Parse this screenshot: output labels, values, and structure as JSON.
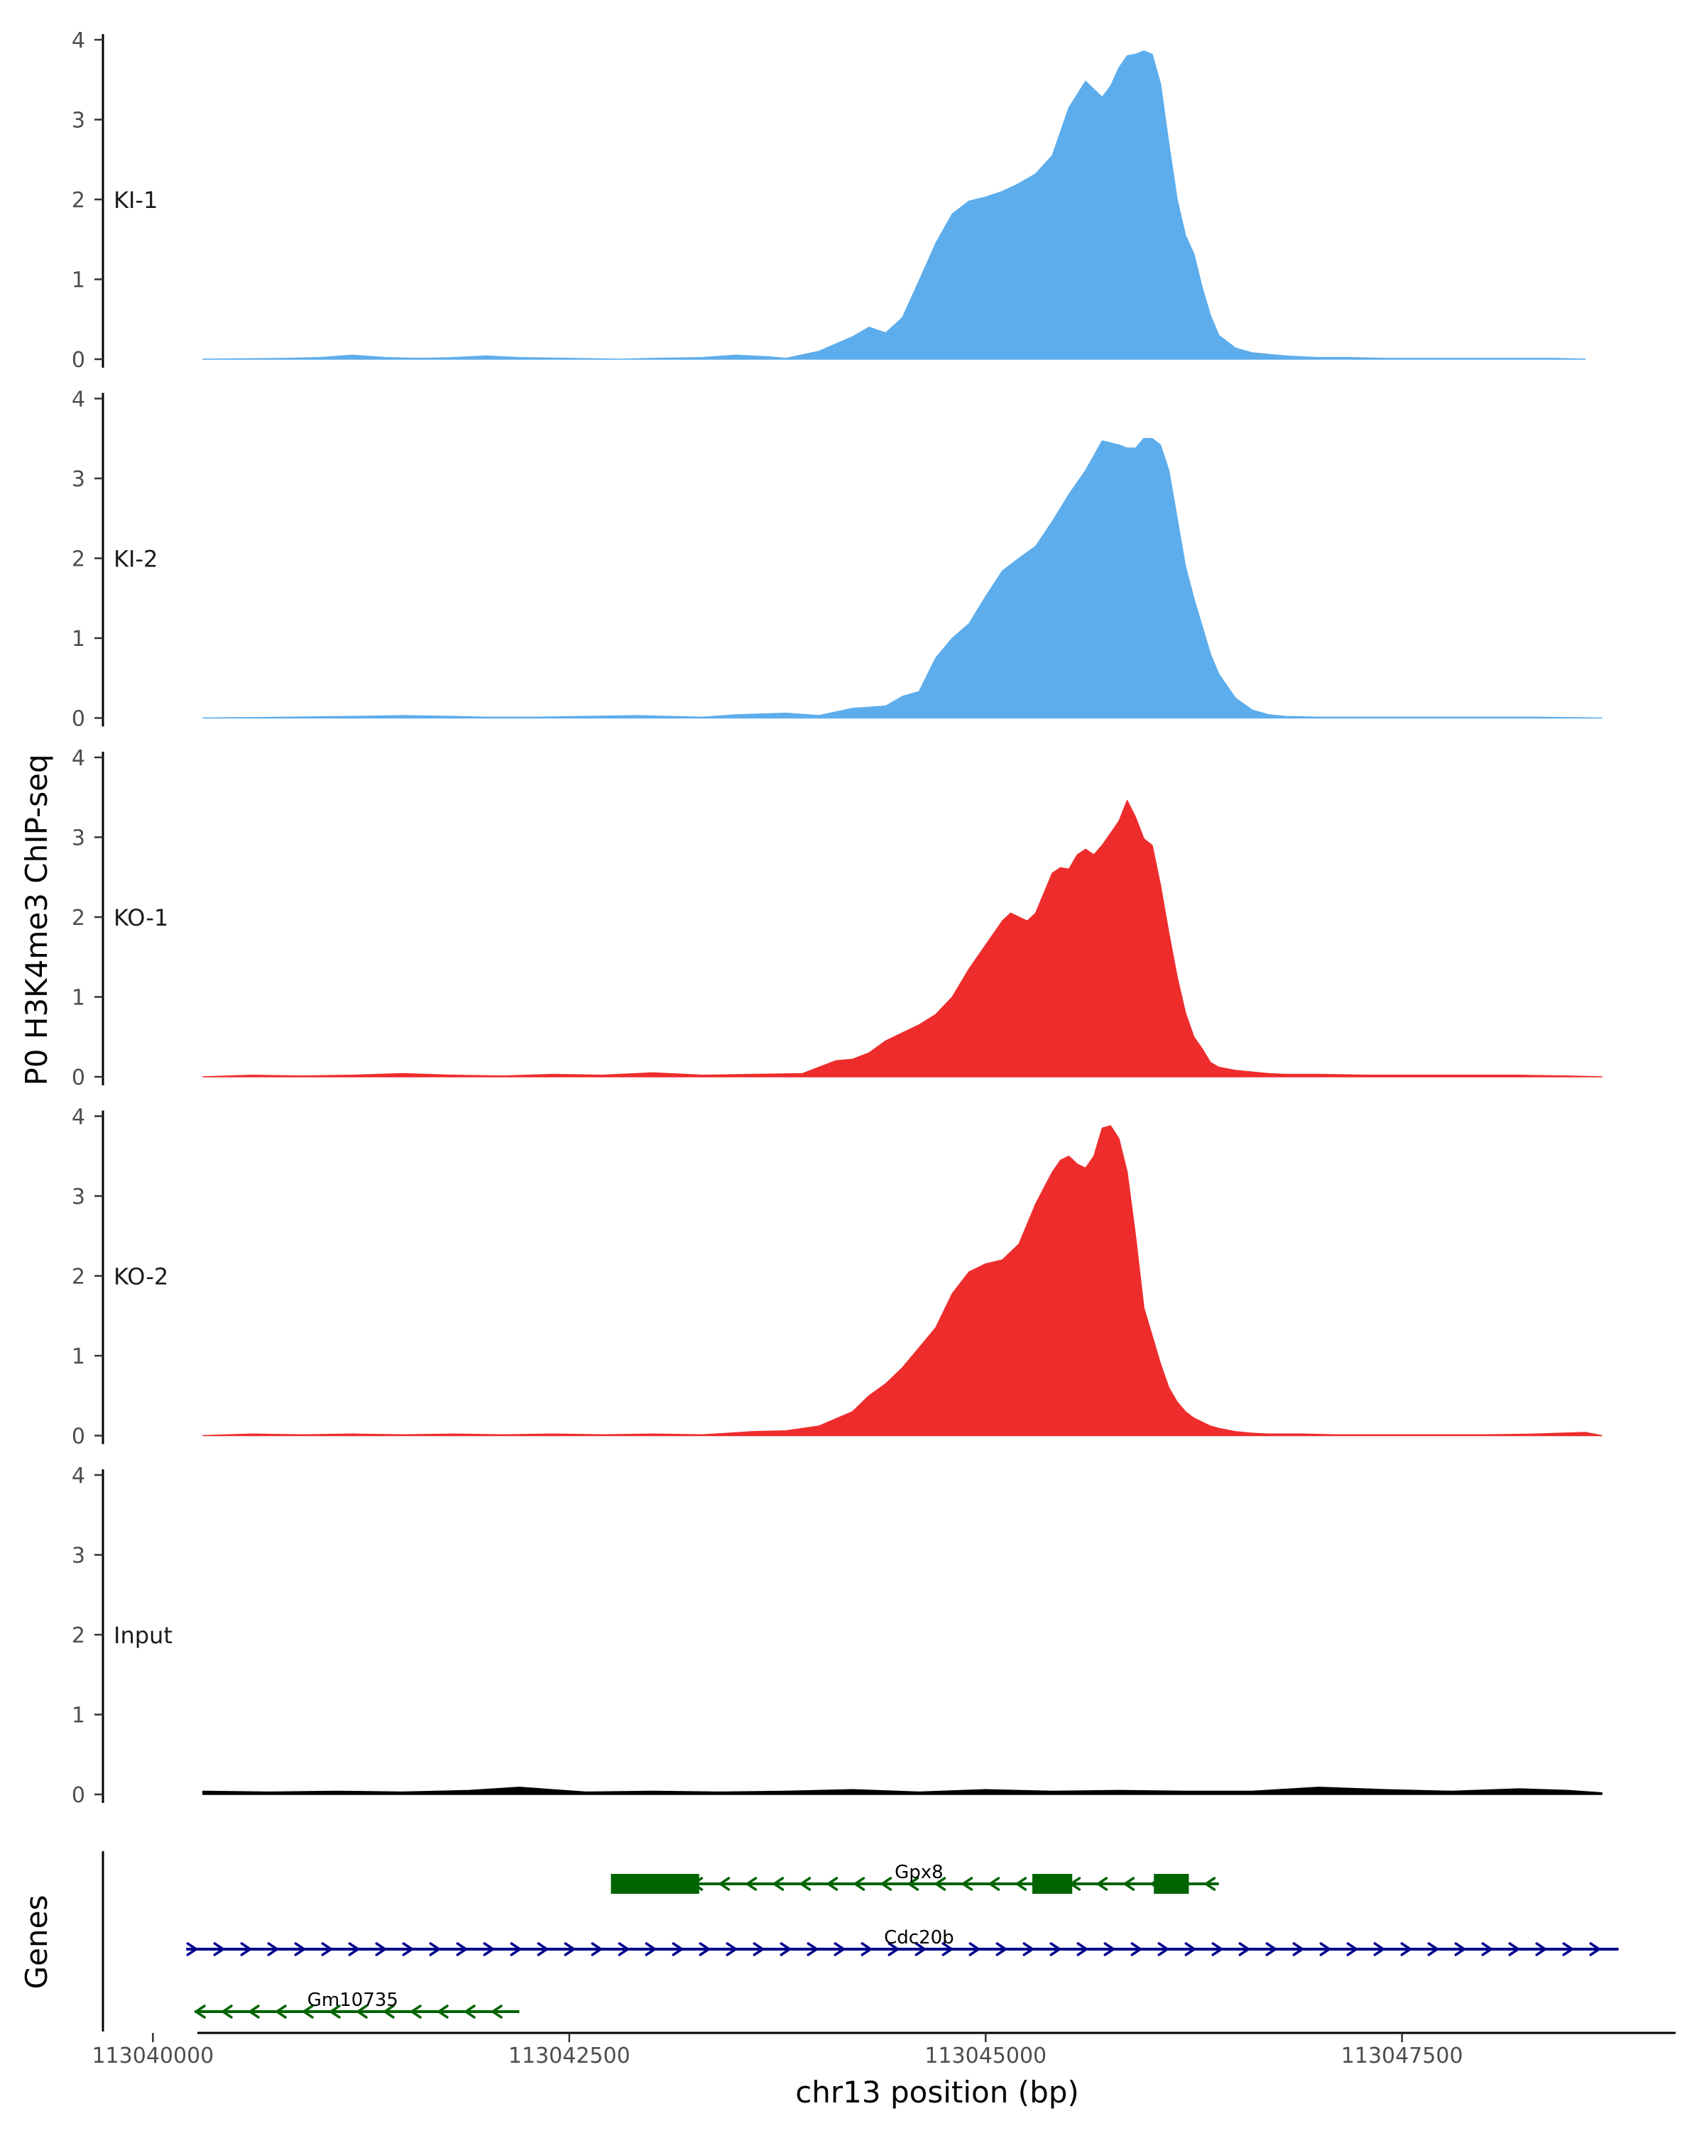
{
  "chart_data": {
    "type": "area",
    "ylabel": "P0 H3K4me3 ChIP-seq",
    "xlabel": "chr13 position (bp)",
    "genes_label": "Genes",
    "ylim": [
      0,
      4
    ],
    "y_ticks": [
      0,
      1,
      2,
      3,
      4
    ],
    "xlim": [
      113039700,
      113049100
    ],
    "x_ticks": [
      113040000,
      113042500,
      113045000,
      113047500
    ],
    "x_tick_labels": [
      "113040000",
      "113042500",
      "113045000",
      "113047500"
    ],
    "tracks": [
      {
        "name": "KI-1",
        "color": "#5DADEC",
        "x_range": [
          113040300,
          113048600
        ],
        "x": [
          113040300,
          113040800,
          113041000,
          113041200,
          113041400,
          113041600,
          113041800,
          113042000,
          113042200,
          113042500,
          113042800,
          113043000,
          113043300,
          113043500,
          113043700,
          113043800,
          113044000,
          113044200,
          113044300,
          113044400,
          113044500,
          113044600,
          113044700,
          113044800,
          113044900,
          113045000,
          113045100,
          113045200,
          113045300,
          113045400,
          113045500,
          113045600,
          113045650,
          113045700,
          113045750,
          113045800,
          113045850,
          113045900,
          113045950,
          113046000,
          113046050,
          113046100,
          113046150,
          113046200,
          113046250,
          113046300,
          113046350,
          113046400,
          113046500,
          113046600,
          113046700,
          113046800,
          113046900,
          113047000,
          113047200,
          113047400,
          113047600,
          113047800,
          113048000,
          113048200,
          113048400,
          113048600
        ],
        "y": [
          0,
          0.01,
          0.02,
          0.05,
          0.02,
          0.01,
          0.02,
          0.04,
          0.02,
          0.01,
          0,
          0.01,
          0.02,
          0.05,
          0.03,
          0.01,
          0.1,
          0.28,
          0.4,
          0.33,
          0.52,
          0.98,
          1.45,
          1.82,
          1.98,
          2.03,
          2.1,
          2.2,
          2.32,
          2.55,
          3.15,
          3.48,
          3.38,
          3.28,
          3.42,
          3.65,
          3.8,
          3.82,
          3.86,
          3.82,
          3.45,
          2.7,
          2.0,
          1.55,
          1.32,
          0.9,
          0.55,
          0.3,
          0.14,
          0.08,
          0.06,
          0.04,
          0.03,
          0.02,
          0.02,
          0.01,
          0.01,
          0.01,
          0.01,
          0.01,
          0.01,
          0
        ]
      },
      {
        "name": "KI-2",
        "color": "#5DADEC",
        "x_range": [
          113040300,
          113048700
        ],
        "x": [
          113040300,
          113040800,
          113041200,
          113041500,
          113041800,
          113042000,
          113042300,
          113042600,
          113042900,
          113043100,
          113043300,
          113043500,
          113043800,
          113044000,
          113044200,
          113044400,
          113044500,
          113044600,
          113044700,
          113044800,
          113044900,
          113045000,
          113045100,
          113045200,
          113045300,
          113045400,
          113045500,
          113045600,
          113045700,
          113045800,
          113045850,
          113045900,
          113045950,
          113046000,
          113046050,
          113046100,
          113046150,
          113046200,
          113046250,
          113046300,
          113046350,
          113046400,
          113046500,
          113046600,
          113046700,
          113046800,
          113047000,
          113047200,
          113047500,
          113047800,
          113048000,
          113048300,
          113048700
        ],
        "y": [
          0,
          0.01,
          0.02,
          0.03,
          0.02,
          0.01,
          0.01,
          0.02,
          0.03,
          0.02,
          0.01,
          0.04,
          0.06,
          0.03,
          0.12,
          0.15,
          0.27,
          0.33,
          0.75,
          1.0,
          1.18,
          1.52,
          1.84,
          2.0,
          2.15,
          2.46,
          2.8,
          3.1,
          3.47,
          3.42,
          3.38,
          3.38,
          3.5,
          3.5,
          3.42,
          3.1,
          2.5,
          1.9,
          1.5,
          1.15,
          0.8,
          0.55,
          0.25,
          0.1,
          0.04,
          0.02,
          0.01,
          0.01,
          0.01,
          0.01,
          0.01,
          0.01,
          0
        ]
      },
      {
        "name": "KO-1",
        "color": "#EE2C2C",
        "x_range": [
          113040300,
          113048700
        ],
        "x": [
          113040300,
          113040600,
          113040900,
          113041200,
          113041500,
          113041800,
          113042100,
          113042400,
          113042700,
          113043000,
          113043300,
          113043600,
          113043900,
          113044100,
          113044200,
          113044300,
          113044400,
          113044500,
          113044600,
          113044700,
          113044800,
          113044900,
          113045000,
          113045100,
          113045150,
          113045200,
          113045250,
          113045300,
          113045400,
          113045450,
          113045500,
          113045550,
          113045600,
          113045650,
          113045700,
          113045750,
          113045800,
          113045850,
          113045900,
          113045950,
          113046000,
          113046050,
          113046100,
          113046150,
          113046200,
          113046250,
          113046300,
          113046350,
          113046400,
          113046500,
          113046600,
          113046700,
          113046800,
          113047000,
          113047300,
          113047600,
          113047900,
          113048200,
          113048500,
          113048700
        ],
        "y": [
          0,
          0.02,
          0.01,
          0.02,
          0.04,
          0.02,
          0.01,
          0.03,
          0.02,
          0.05,
          0.02,
          0.03,
          0.04,
          0.2,
          0.22,
          0.3,
          0.45,
          0.55,
          0.65,
          0.78,
          1.0,
          1.35,
          1.65,
          1.95,
          2.05,
          2.0,
          1.95,
          2.05,
          2.55,
          2.62,
          2.6,
          2.78,
          2.85,
          2.78,
          2.9,
          3.05,
          3.2,
          3.46,
          3.25,
          2.98,
          2.9,
          2.4,
          1.8,
          1.25,
          0.8,
          0.5,
          0.35,
          0.18,
          0.12,
          0.08,
          0.06,
          0.04,
          0.03,
          0.03,
          0.02,
          0.02,
          0.02,
          0.02,
          0.01,
          0
        ]
      },
      {
        "name": "KO-2",
        "color": "#EE2C2C",
        "x_range": [
          113040300,
          113048700
        ],
        "x": [
          113040300,
          113040600,
          113040900,
          113041200,
          113041500,
          113041800,
          113042100,
          113042400,
          113042700,
          113043000,
          113043300,
          113043600,
          113043800,
          113044000,
          113044200,
          113044300,
          113044400,
          113044500,
          113044600,
          113044700,
          113044800,
          113044900,
          113045000,
          113045100,
          113045200,
          113045300,
          113045350,
          113045400,
          113045450,
          113045500,
          113045550,
          113045600,
          113045650,
          113045700,
          113045750,
          113045800,
          113045850,
          113045900,
          113045950,
          113046000,
          113046050,
          113046100,
          113046150,
          113046200,
          113046250,
          113046300,
          113046350,
          113046400,
          113046500,
          113046600,
          113046700,
          113046900,
          113047100,
          113047400,
          113047700,
          113048000,
          113048300,
          113048600,
          113048700
        ],
        "y": [
          0,
          0.02,
          0.01,
          0.02,
          0.01,
          0.02,
          0.01,
          0.02,
          0.01,
          0.02,
          0.01,
          0.05,
          0.06,
          0.12,
          0.3,
          0.5,
          0.65,
          0.85,
          1.1,
          1.35,
          1.78,
          2.05,
          2.15,
          2.2,
          2.4,
          2.9,
          3.1,
          3.3,
          3.45,
          3.5,
          3.4,
          3.35,
          3.5,
          3.85,
          3.88,
          3.72,
          3.3,
          2.5,
          1.6,
          1.25,
          0.9,
          0.6,
          0.42,
          0.3,
          0.22,
          0.17,
          0.12,
          0.09,
          0.05,
          0.03,
          0.02,
          0.02,
          0.01,
          0.01,
          0.01,
          0.01,
          0.02,
          0.04,
          0
        ]
      },
      {
        "name": "Input",
        "color": "#000000",
        "x_range": [
          113040300,
          113048700
        ],
        "x": [
          113040300,
          113040700,
          113041100,
          113041500,
          113041900,
          113042200,
          113042600,
          113043000,
          113043400,
          113043800,
          113044200,
          113044600,
          113045000,
          113045400,
          113045800,
          113046200,
          113046600,
          113047000,
          113047400,
          113047800,
          113048200,
          113048500,
          113048700
        ],
        "y": [
          0.04,
          0.03,
          0.04,
          0.03,
          0.05,
          0.09,
          0.03,
          0.04,
          0.03,
          0.04,
          0.06,
          0.03,
          0.06,
          0.04,
          0.05,
          0.04,
          0.04,
          0.09,
          0.06,
          0.04,
          0.07,
          0.05,
          0.02
        ]
      }
    ],
    "genes": [
      {
        "name": "Gpx8",
        "color": "#006400",
        "strand": "-",
        "start": 113042750,
        "end": 113046400,
        "exons": [
          [
            113042750,
            113043280
          ],
          [
            113045280,
            113045520
          ],
          [
            113046010,
            113046220
          ]
        ]
      },
      {
        "name": "Cdc20b",
        "color": "#00008B",
        "strand": "+",
        "start": 113040200,
        "end": 113048800,
        "exons": []
      },
      {
        "name": "Gm10735",
        "color": "#006400",
        "strand": "-",
        "start": 113040250,
        "end": 113042200,
        "exons": []
      }
    ]
  }
}
